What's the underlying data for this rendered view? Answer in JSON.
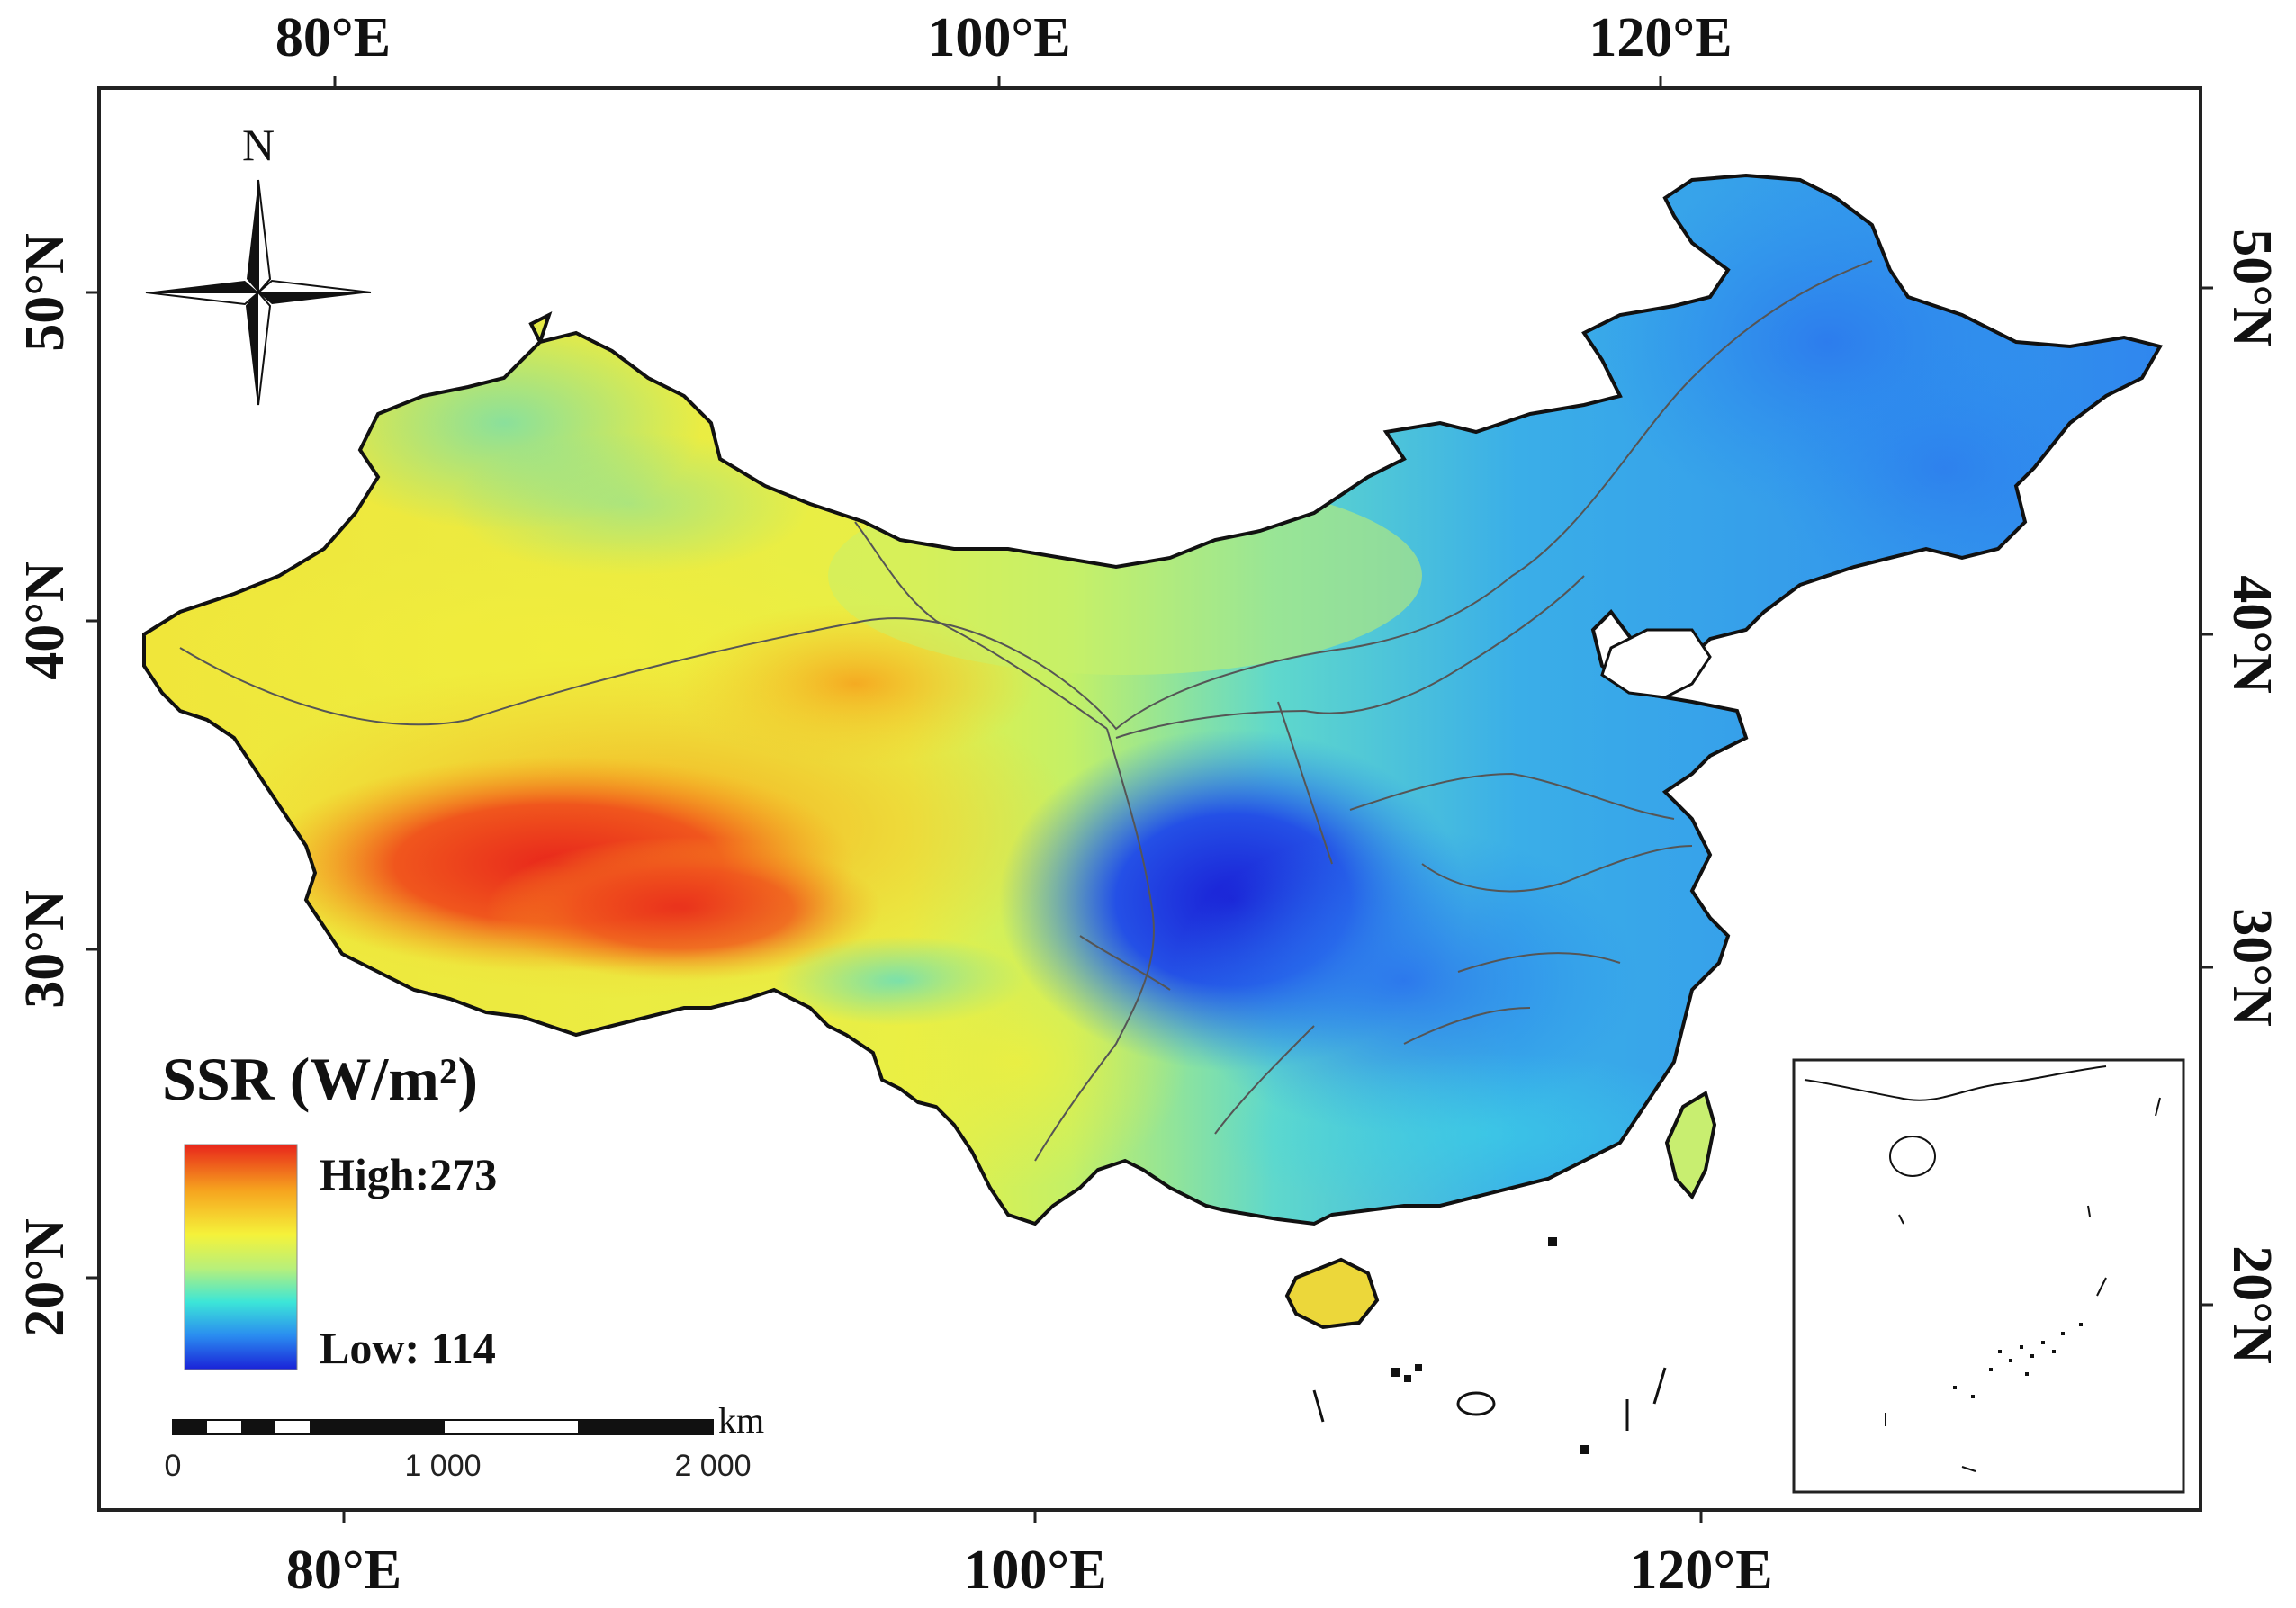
{
  "axes": {
    "top_lon": [
      "80°E",
      "100°E",
      "120°E"
    ],
    "bottom_lon": [
      "80°E",
      "100°E",
      "120°E"
    ],
    "left_lat": [
      "50°N",
      "40°N",
      "30°N",
      "20°N"
    ],
    "right_lat": [
      "50°N",
      "40°N",
      "30°N",
      "20°N"
    ]
  },
  "north_arrow": {
    "label": "N"
  },
  "legend": {
    "title": "SSR (W/m²)",
    "high_label": "High:273",
    "low_label": "Low:  114",
    "colors": [
      "#e8261b",
      "#f6a21e",
      "#f5f23a",
      "#b8f07a",
      "#3ce6d8",
      "#2a8cf0",
      "#1a22d8"
    ]
  },
  "scale_bar": {
    "unit": "km",
    "ticks": [
      "0",
      "1 000",
      "2 000"
    ]
  }
}
